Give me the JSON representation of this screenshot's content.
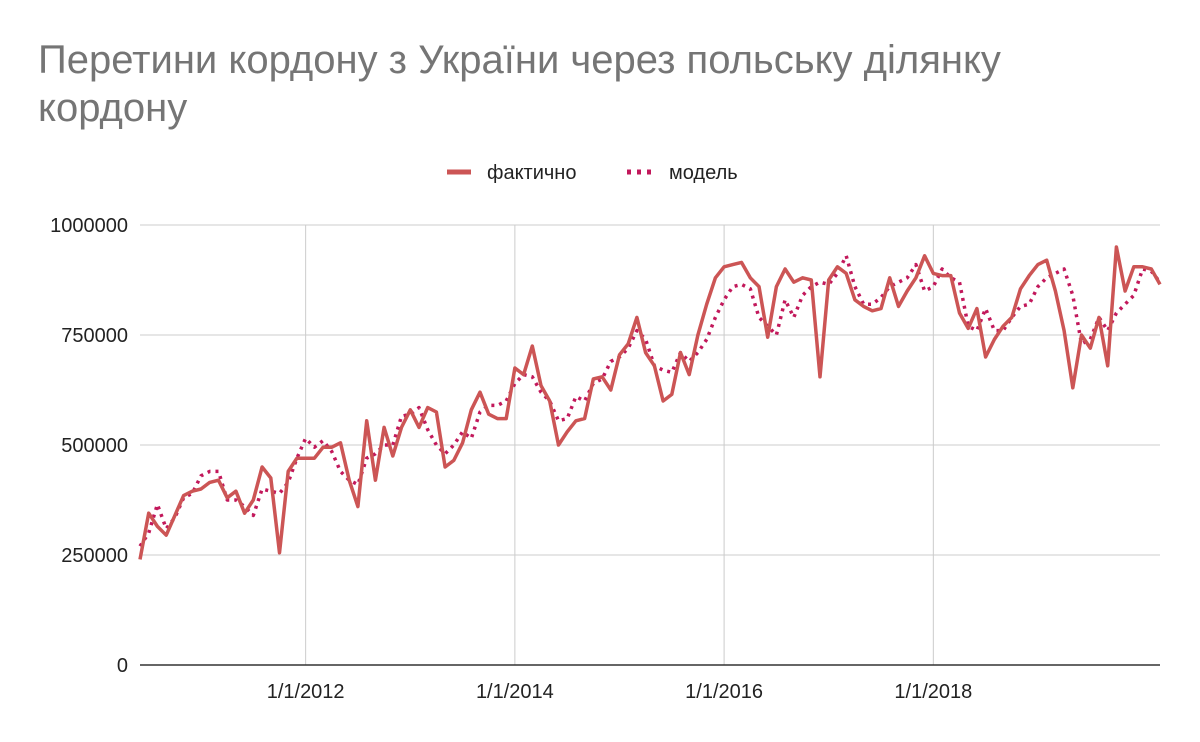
{
  "chart_data": {
    "type": "line",
    "title": "Перетини кордону з України через польську ділянку кордону",
    "xlabel": "",
    "ylabel": "",
    "x_start": "2010-06",
    "x_tick_labels": [
      "1/1/2012",
      "1/1/2014",
      "1/1/2016",
      "1/1/2018"
    ],
    "y_tick_labels": [
      "0",
      "250000",
      "500000",
      "750000",
      "1000000"
    ],
    "ylim": [
      0,
      1000000
    ],
    "grid": true,
    "legend_position": "top",
    "series": [
      {
        "name": "фактично",
        "color": "#cc5555",
        "style": "solid",
        "values": [
          240000,
          345000,
          315000,
          295000,
          340000,
          385000,
          395000,
          400000,
          415000,
          420000,
          380000,
          395000,
          345000,
          375000,
          450000,
          425000,
          255000,
          440000,
          470000,
          470000,
          470000,
          495000,
          495000,
          505000,
          420000,
          360000,
          555000,
          420000,
          540000,
          475000,
          540000,
          580000,
          540000,
          585000,
          575000,
          450000,
          465000,
          505000,
          580000,
          620000,
          570000,
          560000,
          560000,
          675000,
          660000,
          725000,
          635000,
          600000,
          500000,
          530000,
          555000,
          560000,
          650000,
          655000,
          625000,
          705000,
          730000,
          790000,
          710000,
          680000,
          600000,
          615000,
          710000,
          660000,
          750000,
          820000,
          880000,
          905000,
          910000,
          915000,
          880000,
          860000,
          745000,
          860000,
          900000,
          870000,
          880000,
          875000,
          655000,
          875000,
          905000,
          890000,
          830000,
          815000,
          805000,
          810000,
          880000,
          815000,
          850000,
          880000,
          930000,
          890000,
          885000,
          885000,
          800000,
          765000,
          810000,
          700000,
          740000,
          770000,
          790000,
          855000,
          885000,
          910000,
          920000,
          850000,
          760000,
          630000,
          750000,
          720000,
          790000,
          680000,
          950000,
          850000,
          905000,
          905000,
          900000,
          865000
        ]
      },
      {
        "name": "модель",
        "color": "#c2185b",
        "style": "dotted",
        "values": [
          270000,
          300000,
          365000,
          310000,
          335000,
          380000,
          390000,
          430000,
          440000,
          440000,
          375000,
          375000,
          360000,
          340000,
          400000,
          395000,
          390000,
          415000,
          470000,
          515000,
          495000,
          510000,
          485000,
          440000,
          420000,
          410000,
          470000,
          480000,
          500000,
          500000,
          565000,
          570000,
          585000,
          535000,
          500000,
          480000,
          500000,
          530000,
          515000,
          575000,
          590000,
          590000,
          600000,
          640000,
          660000,
          655000,
          620000,
          600000,
          555000,
          560000,
          610000,
          600000,
          640000,
          650000,
          690000,
          700000,
          720000,
          760000,
          740000,
          680000,
          670000,
          665000,
          710000,
          690000,
          710000,
          740000,
          790000,
          830000,
          860000,
          865000,
          855000,
          790000,
          770000,
          750000,
          830000,
          790000,
          840000,
          860000,
          870000,
          865000,
          890000,
          930000,
          860000,
          820000,
          820000,
          835000,
          860000,
          870000,
          880000,
          910000,
          850000,
          860000,
          900000,
          880000,
          870000,
          770000,
          760000,
          810000,
          760000,
          760000,
          790000,
          815000,
          820000,
          860000,
          880000,
          890000,
          900000,
          840000,
          730000,
          740000,
          790000,
          760000,
          800000,
          820000,
          840000,
          900000,
          895000,
          870000
        ]
      }
    ]
  }
}
